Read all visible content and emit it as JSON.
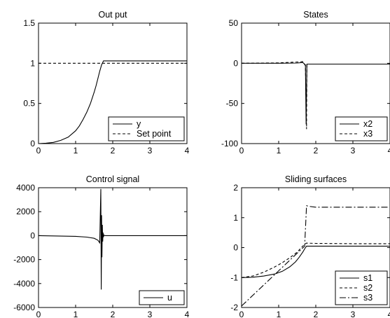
{
  "chart_data": [
    {
      "type": "line",
      "title": "Out put",
      "xlabel": "",
      "ylabel": "",
      "xlim": [
        0,
        4
      ],
      "ylim": [
        0,
        1.5
      ],
      "xticks": [
        0,
        1,
        2,
        3,
        4
      ],
      "xticklabels": [
        "0",
        "1",
        "2",
        "3",
        "4"
      ],
      "yticks": [
        0,
        0.5,
        1,
        1.5
      ],
      "yticklabels": [
        "0",
        "0.5",
        "1",
        "1.5"
      ],
      "legend_position": "bottom-right",
      "series": [
        {
          "name": "y",
          "style": "solid",
          "x": [
            0,
            0.2,
            0.4,
            0.6,
            0.8,
            1.0,
            1.1,
            1.2,
            1.3,
            1.4,
            1.5,
            1.55,
            1.6,
            1.65,
            1.7,
            1.75,
            2.0,
            2.5,
            3.0,
            3.5,
            4.0
          ],
          "y": [
            0,
            0.005,
            0.015,
            0.04,
            0.08,
            0.16,
            0.22,
            0.3,
            0.39,
            0.5,
            0.64,
            0.72,
            0.81,
            0.9,
            0.98,
            1.03,
            1.03,
            1.03,
            1.03,
            1.03,
            1.03
          ]
        },
        {
          "name": "Set point",
          "style": "dashed",
          "x": [
            0,
            4
          ],
          "y": [
            1,
            1
          ]
        }
      ]
    },
    {
      "type": "line",
      "title": "States",
      "xlabel": "",
      "ylabel": "",
      "xlim": [
        0,
        4
      ],
      "ylim": [
        -100,
        50
      ],
      "xticks": [
        0,
        1,
        2,
        3,
        4
      ],
      "xticklabels": [
        "0",
        "1",
        "2",
        "3",
        "4"
      ],
      "yticks": [
        -100,
        -50,
        0,
        50
      ],
      "yticklabels": [
        "-100",
        "-50",
        "0",
        "50"
      ],
      "legend_position": "bottom-right",
      "series": [
        {
          "name": "x2",
          "style": "solid",
          "x": [
            0,
            1.0,
            1.5,
            1.65,
            1.72,
            1.74,
            1.76,
            1.8,
            2.0,
            3.0,
            4.0
          ],
          "y": [
            0,
            0,
            0.3,
            1,
            -2,
            -76,
            -1,
            -1,
            -1,
            -1,
            -1
          ]
        },
        {
          "name": "x3",
          "style": "dashed",
          "x": [
            0,
            1.0,
            1.5,
            1.65,
            1.72,
            1.75,
            1.76,
            1.8,
            2.0,
            3.0,
            4.0
          ],
          "y": [
            0,
            0.5,
            1.5,
            2,
            -3,
            -82,
            -2,
            -1,
            -1,
            -1,
            -1
          ]
        }
      ]
    },
    {
      "type": "line",
      "title": "Control signal",
      "xlabel": "",
      "ylabel": "",
      "xlim": [
        0,
        4
      ],
      "ylim": [
        -6000,
        4000
      ],
      "xticks": [
        0,
        1,
        2,
        3,
        4
      ],
      "xticklabels": [
        "0",
        "1",
        "2",
        "3",
        "4"
      ],
      "yticks": [
        -6000,
        -4000,
        -2000,
        0,
        2000,
        4000
      ],
      "yticklabels": [
        "-6000",
        "-4000",
        "-2000",
        "0",
        "2000",
        "4000"
      ],
      "legend_position": "bottom-right",
      "series": [
        {
          "name": "u",
          "style": "solid",
          "x": [
            0,
            0.5,
            1.0,
            1.3,
            1.5,
            1.6,
            1.65,
            1.68,
            1.69,
            1.7,
            1.71,
            1.72,
            1.73,
            1.74,
            1.75,
            1.76,
            1.78,
            1.8,
            2.0,
            3.0,
            4.0
          ],
          "y": [
            0,
            -30,
            -60,
            -120,
            -220,
            -380,
            -600,
            3900,
            -4500,
            1700,
            -1800,
            900,
            -500,
            250,
            -120,
            60,
            20,
            0,
            0,
            0,
            0
          ]
        }
      ]
    },
    {
      "type": "line",
      "title": "Sliding surfaces",
      "xlabel": "",
      "ylabel": "",
      "xlim": [
        0,
        4
      ],
      "ylim": [
        -2,
        2
      ],
      "xticks": [
        0,
        1,
        2,
        3,
        4
      ],
      "xticklabels": [
        "0",
        "1",
        "2",
        "3",
        "4"
      ],
      "yticks": [
        -2,
        -1,
        0,
        1,
        2
      ],
      "yticklabels": [
        "-2",
        "-1",
        "0",
        "1",
        "2"
      ],
      "legend_position": "bottom-right",
      "series": [
        {
          "name": "s1",
          "style": "solid",
          "x": [
            0,
            0.3,
            0.6,
            0.9,
            1.1,
            1.3,
            1.45,
            1.55,
            1.65,
            1.72,
            1.75,
            2.0,
            3.0,
            4.0
          ],
          "y": [
            -1.0,
            -0.99,
            -0.95,
            -0.88,
            -0.79,
            -0.64,
            -0.48,
            -0.33,
            -0.15,
            0.0,
            0.05,
            0.05,
            0.05,
            0.05
          ]
        },
        {
          "name": "s2",
          "style": "dashed",
          "x": [
            0,
            0.3,
            0.6,
            0.9,
            1.1,
            1.3,
            1.5,
            1.65,
            1.72,
            1.75,
            2.0,
            3.0,
            4.0
          ],
          "y": [
            -1.0,
            -0.95,
            -0.82,
            -0.64,
            -0.5,
            -0.34,
            -0.15,
            0.05,
            0.13,
            0.15,
            0.14,
            0.13,
            0.13
          ]
        },
        {
          "name": "s3",
          "style": "dashdot",
          "x": [
            0,
            1.7,
            1.72,
            1.75,
            1.8,
            2.0,
            3.0,
            4.0
          ],
          "y": [
            -1.95,
            0.05,
            0.6,
            1.4,
            1.38,
            1.35,
            1.35,
            1.35
          ]
        }
      ]
    }
  ]
}
